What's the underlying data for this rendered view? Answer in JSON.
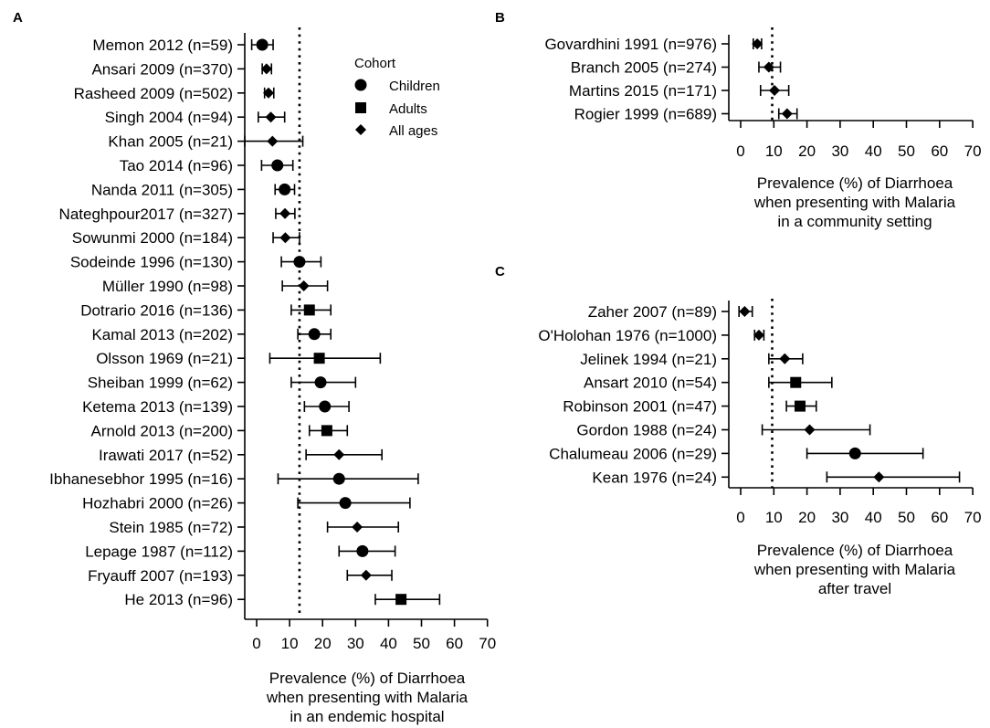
{
  "legend": {
    "title": "Cohort",
    "items": [
      {
        "label": "Children",
        "shape": "circle"
      },
      {
        "label": "Adults",
        "shape": "square"
      },
      {
        "label": "All ages",
        "shape": "diamond"
      }
    ]
  },
  "chart_data": [
    {
      "panel": "A",
      "type": "forest",
      "xlabel": [
        "Prevalence (%) of Diarrhoea",
        "when presenting with Malaria",
        "in an endemic hospital"
      ],
      "xlim": [
        -4,
        70
      ],
      "xticks": [
        0,
        10,
        20,
        30,
        40,
        50,
        60,
        70
      ],
      "reference_line": 13,
      "studies": [
        {
          "label": "Memon 2012 (n=59)",
          "cohort": "circle",
          "est": 1.7,
          "lo": -1.5,
          "hi": 5
        },
        {
          "label": "Ansari 2009 (n=370)",
          "cohort": "diamond",
          "est": 3,
          "lo": 1.7,
          "hi": 4.5
        },
        {
          "label": "Rasheed 2009 (n=502)",
          "cohort": "diamond",
          "est": 3.6,
          "lo": 2.4,
          "hi": 5.2
        },
        {
          "label": "Singh 2004 (n=94)",
          "cohort": "diamond",
          "est": 4.3,
          "lo": 0.5,
          "hi": 8.5
        },
        {
          "label": "Khan 2005 (n=21)",
          "cohort": "diamond",
          "est": 4.8,
          "lo": -4,
          "hi": 14
        },
        {
          "label": "Tao 2014 (n=96)",
          "cohort": "circle",
          "est": 6.3,
          "lo": 1.5,
          "hi": 11
        },
        {
          "label": "Nanda 2011 (n=305)",
          "cohort": "circle",
          "est": 8.5,
          "lo": 5.6,
          "hi": 11.5
        },
        {
          "label": "Nateghpour2017 (n=327)",
          "cohort": "diamond",
          "est": 8.6,
          "lo": 5.8,
          "hi": 11.6
        },
        {
          "label": "Sowunmi 2000 (n=184)",
          "cohort": "diamond",
          "est": 8.7,
          "lo": 5,
          "hi": 13
        },
        {
          "label": "Sodeinde 1996 (n=130)",
          "cohort": "circle",
          "est": 13,
          "lo": 7.5,
          "hi": 19.5
        },
        {
          "label": "Müller 1990 (n=98)",
          "cohort": "diamond",
          "est": 14.3,
          "lo": 7.8,
          "hi": 21.5
        },
        {
          "label": "Dotrario 2016 (n=136)",
          "cohort": "square",
          "est": 16,
          "lo": 10.5,
          "hi": 22.5
        },
        {
          "label": "Kamal 2013 (n=202)",
          "cohort": "circle",
          "est": 17.5,
          "lo": 12.5,
          "hi": 22.5
        },
        {
          "label": "Olsson 1969 (n=21)",
          "cohort": "square",
          "est": 19,
          "lo": 4,
          "hi": 37.5
        },
        {
          "label": "Sheiban 1999 (n=62)",
          "cohort": "circle",
          "est": 19.4,
          "lo": 10.5,
          "hi": 30
        },
        {
          "label": "Ketema 2013 (n=139)",
          "cohort": "circle",
          "est": 20.7,
          "lo": 14.5,
          "hi": 28
        },
        {
          "label": "Arnold 2013 (n=200)",
          "cohort": "square",
          "est": 21.3,
          "lo": 16,
          "hi": 27.5
        },
        {
          "label": "Irawati 2017 (n=52)",
          "cohort": "diamond",
          "est": 25,
          "lo": 15,
          "hi": 38
        },
        {
          "label": "Ibhanesebhor 1995 (n=16)",
          "cohort": "circle",
          "est": 25,
          "lo": 6.5,
          "hi": 49
        },
        {
          "label": "Hozhabri 2000 (n=26)",
          "cohort": "circle",
          "est": 26.9,
          "lo": 12.5,
          "hi": 46.5
        },
        {
          "label": "Stein 1985 (n=72)",
          "cohort": "diamond",
          "est": 30.5,
          "lo": 21.5,
          "hi": 43
        },
        {
          "label": "Lepage 1987 (n=112)",
          "cohort": "circle",
          "est": 32.1,
          "lo": 25,
          "hi": 42
        },
        {
          "label": "Fryauff 2007 (n=193)",
          "cohort": "diamond",
          "est": 33.2,
          "lo": 27.5,
          "hi": 41
        },
        {
          "label": "He 2013 (n=96)",
          "cohort": "square",
          "est": 43.8,
          "lo": 36,
          "hi": 55.5
        }
      ]
    },
    {
      "panel": "B",
      "type": "forest",
      "xlabel": [
        "Prevalence (%) of Diarrhoea",
        "when presenting with Malaria",
        "in a community setting"
      ],
      "xlim": [
        -2,
        70
      ],
      "xticks": [
        0,
        10,
        20,
        30,
        40,
        50,
        60,
        70
      ],
      "reference_line": 9.5,
      "studies": [
        {
          "label": "Govardhini 1991 (n=976)",
          "cohort": "diamond",
          "est": 5,
          "lo": 3.8,
          "hi": 6.3
        },
        {
          "label": "Branch 2005 (n=274)",
          "cohort": "diamond",
          "est": 8.5,
          "lo": 5.5,
          "hi": 12
        },
        {
          "label": "Martins 2015 (n=171)",
          "cohort": "diamond",
          "est": 10.2,
          "lo": 6,
          "hi": 14.5
        },
        {
          "label": "Rogier 1999 (n=689)",
          "cohort": "diamond",
          "est": 14,
          "lo": 11.5,
          "hi": 17
        }
      ]
    },
    {
      "panel": "C",
      "type": "forest",
      "xlabel": [
        "Prevalence (%) of Diarrhoea",
        "when presenting with Malaria",
        "after travel"
      ],
      "xlim": [
        -2,
        70
      ],
      "xticks": [
        0,
        10,
        20,
        30,
        40,
        50,
        60,
        70
      ],
      "reference_line": 9.5,
      "studies": [
        {
          "label": "Zaher 2007 (n=89)",
          "cohort": "diamond",
          "est": 1.2,
          "lo": -0.5,
          "hi": 3.5
        },
        {
          "label": "O'Holohan 1976 (n=1000)",
          "cohort": "diamond",
          "est": 5.5,
          "lo": 4.2,
          "hi": 7
        },
        {
          "label": "Jelinek 1994 (n=21)",
          "cohort": "diamond",
          "est": 13.3,
          "lo": 8.5,
          "hi": 18.7
        },
        {
          "label": "Ansart 2010 (n=54)",
          "cohort": "square",
          "est": 16.6,
          "lo": 8.5,
          "hi": 27.5
        },
        {
          "label": "Robinson 2001 (n=47)",
          "cohort": "square",
          "est": 17.9,
          "lo": 13.8,
          "hi": 22.8
        },
        {
          "label": "Gordon 1988 (n=24)",
          "cohort": "diamond",
          "est": 20.8,
          "lo": 6.5,
          "hi": 39
        },
        {
          "label": "Chalumeau 2006 (n=29)",
          "cohort": "circle",
          "est": 34.5,
          "lo": 20,
          "hi": 55
        },
        {
          "label": "Kean 1976 (n=24)",
          "cohort": "diamond",
          "est": 41.7,
          "lo": 26,
          "hi": 66
        }
      ]
    }
  ]
}
